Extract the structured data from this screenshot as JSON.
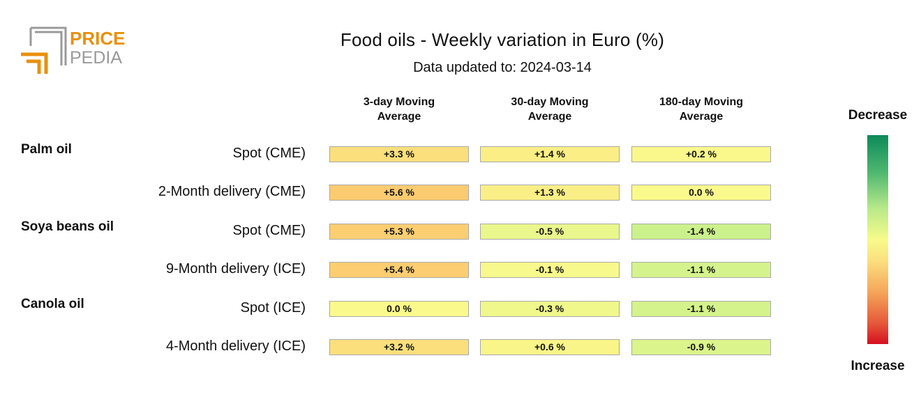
{
  "brand": {
    "logo_text_top": "PRICE",
    "logo_text_bottom": "PEDIA",
    "accent_color": "#e8900c",
    "gray_color": "#9a9a9a"
  },
  "chart_data": {
    "type": "heatmap",
    "title": "Food oils - Weekly variation in Euro (%)",
    "subtitle": "Data updated to: 2024-03-14",
    "columns": [
      "3-day Moving\nAverage",
      "30-day Moving\nAverage",
      "180-day Moving\nAverage"
    ],
    "groups": [
      {
        "name": "Palm oil",
        "rows": [
          {
            "label": "Spot (CME)",
            "values": [
              3.3,
              1.4,
              0.2
            ],
            "text": [
              "+3.3 %",
              "+1.4 %",
              "+0.2 %"
            ]
          },
          {
            "label": "2-Month delivery (CME)",
            "values": [
              5.6,
              1.3,
              0.0
            ],
            "text": [
              "+5.6 %",
              "+1.3 %",
              "0.0 %"
            ]
          }
        ]
      },
      {
        "name": "Soya beans oil",
        "rows": [
          {
            "label": "Spot (CME)",
            "values": [
              5.3,
              -0.5,
              -1.4
            ],
            "text": [
              "+5.3 %",
              "-0.5 %",
              "-1.4 %"
            ]
          },
          {
            "label": "9-Month delivery (ICE)",
            "values": [
              5.4,
              -0.1,
              -1.1
            ],
            "text": [
              "+5.4 %",
              "-0.1 %",
              "-1.1 %"
            ]
          }
        ]
      },
      {
        "name": "Canola oil",
        "rows": [
          {
            "label": "Spot (ICE)",
            "values": [
              0.0,
              -0.3,
              -1.1
            ],
            "text": [
              "0.0 %",
              "-0.3 %",
              "-1.1 %"
            ]
          },
          {
            "label": "4-Month delivery (ICE)",
            "values": [
              3.2,
              0.6,
              -0.9
            ],
            "text": [
              "+3.2 %",
              "+0.6 %",
              "-0.9 %"
            ]
          }
        ]
      }
    ],
    "legend": {
      "top_label": "Decrease",
      "bottom_label": "Increase"
    }
  }
}
